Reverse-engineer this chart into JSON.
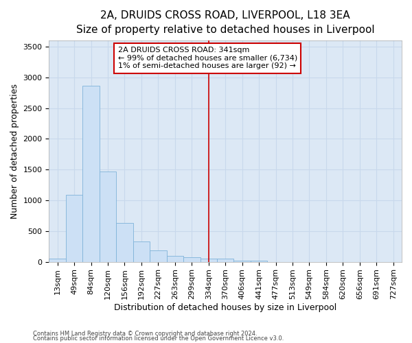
{
  "title": "2A, DRUIDS CROSS ROAD, LIVERPOOL, L18 3EA",
  "subtitle": "Size of property relative to detached houses in Liverpool",
  "xlabel": "Distribution of detached houses by size in Liverpool",
  "ylabel": "Number of detached properties",
  "categories": [
    "13sqm",
    "49sqm",
    "84sqm",
    "120sqm",
    "156sqm",
    "192sqm",
    "227sqm",
    "263sqm",
    "299sqm",
    "334sqm",
    "370sqm",
    "406sqm",
    "441sqm",
    "477sqm",
    "513sqm",
    "549sqm",
    "584sqm",
    "620sqm",
    "656sqm",
    "691sqm",
    "727sqm"
  ],
  "values": [
    50,
    1090,
    2860,
    1470,
    630,
    330,
    185,
    100,
    70,
    50,
    50,
    20,
    15,
    0,
    0,
    0,
    0,
    0,
    0,
    0,
    0
  ],
  "bar_color": "#cce0f5",
  "bar_edge_color": "#7fb3d9",
  "grid_color": "#c8d8ec",
  "background_color": "#dce8f5",
  "vline_x": 9,
  "vline_color": "#cc0000",
  "annotation_text": "2A DRUIDS CROSS ROAD: 341sqm\n← 99% of detached houses are smaller (6,734)\n1% of semi-detached houses are larger (92) →",
  "footnote1": "Contains HM Land Registry data © Crown copyright and database right 2024.",
  "footnote2": "Contains public sector information licensed under the Open Government Licence v3.0.",
  "ylim": [
    0,
    3600
  ],
  "yticks": [
    0,
    500,
    1000,
    1500,
    2000,
    2500,
    3000,
    3500
  ],
  "title_fontsize": 11,
  "subtitle_fontsize": 9,
  "tick_fontsize": 8,
  "label_fontsize": 9,
  "ann_fontsize": 8
}
